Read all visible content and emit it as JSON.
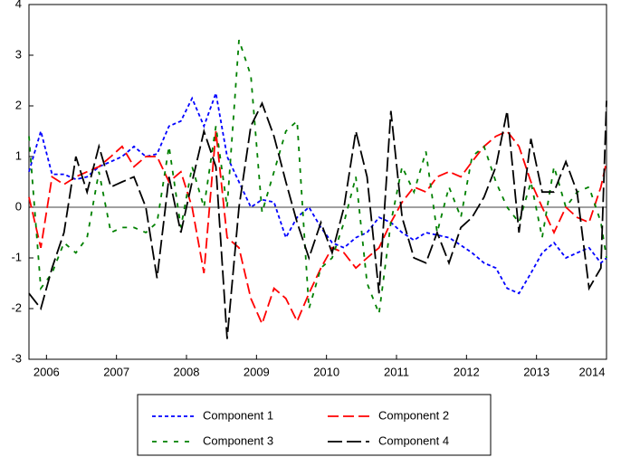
{
  "chart_data": {
    "type": "line",
    "x": [
      2005.75,
      2005.92,
      2006.08,
      2006.25,
      2006.42,
      2006.58,
      2006.75,
      2006.92,
      2007.08,
      2007.25,
      2007.42,
      2007.58,
      2007.75,
      2007.92,
      2008.08,
      2008.25,
      2008.42,
      2008.58,
      2008.75,
      2008.92,
      2009.08,
      2009.25,
      2009.42,
      2009.58,
      2009.75,
      2009.92,
      2010.08,
      2010.25,
      2010.42,
      2010.58,
      2010.75,
      2010.92,
      2011.08,
      2011.25,
      2011.42,
      2011.58,
      2011.75,
      2011.92,
      2012.08,
      2012.25,
      2012.42,
      2012.58,
      2012.75,
      2012.92,
      2013.08,
      2013.25,
      2013.42,
      2013.58,
      2013.75,
      2013.92,
      2014.0
    ],
    "series": [
      {
        "name": "Component 1",
        "color": "#0000ff",
        "values": [
          0.7,
          1.5,
          0.65,
          0.65,
          0.55,
          0.6,
          0.8,
          0.9,
          1.0,
          1.2,
          1.0,
          1.05,
          1.6,
          1.7,
          2.15,
          1.6,
          2.25,
          1.0,
          0.5,
          0.0,
          0.15,
          0.1,
          -0.6,
          -0.2,
          0.0,
          -0.4,
          -0.7,
          -0.8,
          -0.6,
          -0.5,
          -0.2,
          -0.3,
          -0.5,
          -0.65,
          -0.5,
          -0.55,
          -0.6,
          -0.75,
          -0.9,
          -1.1,
          -1.2,
          -1.6,
          -1.7,
          -1.3,
          -0.9,
          -0.7,
          -1.0,
          -0.9,
          -0.8,
          -1.1,
          -1.0
        ]
      },
      {
        "name": "Component 2",
        "color": "#ff0000",
        "values": [
          0.2,
          -0.8,
          0.6,
          0.45,
          0.6,
          0.7,
          0.8,
          1.0,
          1.2,
          0.8,
          1.0,
          1.0,
          0.5,
          0.7,
          0.0,
          -1.3,
          1.5,
          -0.6,
          -0.8,
          -1.8,
          -2.3,
          -1.6,
          -1.8,
          -2.25,
          -1.7,
          -1.2,
          -0.8,
          -0.9,
          -1.2,
          -1.0,
          -0.8,
          -0.3,
          0.1,
          0.4,
          0.3,
          0.6,
          0.7,
          0.6,
          0.9,
          1.2,
          1.4,
          1.5,
          1.2,
          0.5,
          0.0,
          -0.5,
          0.0,
          -0.2,
          -0.3,
          0.4,
          0.9
        ]
      },
      {
        "name": "Component 3",
        "color": "#008000",
        "values": [
          1.4,
          -1.6,
          -1.3,
          -0.7,
          -0.9,
          -0.6,
          0.7,
          -0.5,
          -0.4,
          -0.4,
          -0.5,
          -0.3,
          1.2,
          -0.4,
          0.8,
          0.0,
          1.6,
          0.0,
          3.3,
          2.6,
          -0.1,
          0.7,
          1.5,
          1.7,
          -2.0,
          -1.2,
          -1.0,
          -0.3,
          0.6,
          -1.5,
          -2.1,
          -0.3,
          0.8,
          0.3,
          1.1,
          -0.5,
          0.4,
          -0.2,
          1.0,
          1.2,
          0.5,
          0.0,
          -0.3,
          0.5,
          -0.6,
          0.8,
          0.0,
          0.3,
          0.4,
          -0.3,
          -1.0
        ]
      },
      {
        "name": "Component 4",
        "color": "#000000",
        "values": [
          -1.7,
          -2.0,
          -1.2,
          -0.5,
          1.0,
          0.3,
          1.2,
          0.4,
          0.5,
          0.6,
          0.0,
          -1.4,
          0.6,
          -0.5,
          0.5,
          1.5,
          0.8,
          -2.6,
          0.0,
          1.6,
          2.05,
          1.4,
          0.5,
          -0.3,
          -1.0,
          -0.3,
          -0.9,
          0.0,
          1.5,
          0.6,
          -1.7,
          1.9,
          -0.2,
          -1.0,
          -1.1,
          -0.5,
          -1.1,
          -0.4,
          -0.2,
          0.2,
          0.8,
          1.9,
          -0.5,
          1.35,
          0.3,
          0.3,
          0.9,
          0.3,
          -1.6,
          -1.2,
          2.1
        ]
      }
    ],
    "xlim": [
      2005.75,
      2014.0
    ],
    "xticks": [
      2006,
      2007,
      2008,
      2009,
      2010,
      2011,
      2012,
      2013,
      2014
    ],
    "ylim": [
      -3,
      4
    ],
    "yticks": [
      -3,
      -2,
      -1,
      0,
      1,
      2,
      3,
      4
    ],
    "grid": false,
    "legend": "bottom"
  }
}
